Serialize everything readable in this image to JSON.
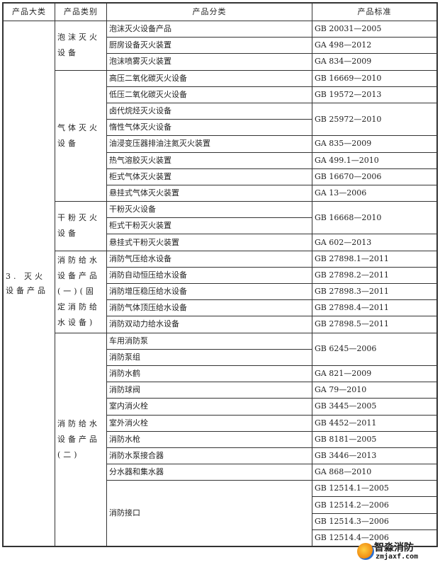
{
  "headers": [
    "产品大类",
    "产品类别",
    "产品分类",
    "产品标准"
  ],
  "group": {
    "label": "3. 灭火设备产品",
    "categories": [
      {
        "label": "泡沫灭火设备",
        "blocks": [
          {
            "products": [
              "泡沫灭火设备产品"
            ],
            "standards": [
              "GB 20031—2005"
            ]
          },
          {
            "products": [
              "厨房设备灭火装置"
            ],
            "standards": [
              "GA 498—2012"
            ]
          },
          {
            "products": [
              "泡沫喷雾灭火装置"
            ],
            "standards": [
              "GA 834—2009"
            ]
          }
        ]
      },
      {
        "label": "气体灭火设备",
        "blocks": [
          {
            "products": [
              "高压二氧化碳灭火设备"
            ],
            "standards": [
              "GB 16669—2010"
            ]
          },
          {
            "products": [
              "低压二氧化碳灭火设备"
            ],
            "standards": [
              "GB 19572—2013"
            ]
          },
          {
            "products": [
              "卤代烷烃灭火设备",
              "惰性气体灭火设备"
            ],
            "standards": [
              "GB 25972—2010"
            ]
          },
          {
            "products": [
              "油浸变压器排油注氮灭火装置"
            ],
            "standards": [
              "GA 835—2009"
            ]
          },
          {
            "products": [
              "热气溶胶灭火装置"
            ],
            "standards": [
              "GA 499.1—2010"
            ]
          },
          {
            "products": [
              "柜式气体灭火装置"
            ],
            "standards": [
              "GB 16670—2006"
            ]
          },
          {
            "products": [
              "悬挂式气体灭火装置"
            ],
            "standards": [
              "GA 13—2006"
            ]
          }
        ]
      },
      {
        "label": "干粉灭火设备",
        "blocks": [
          {
            "products": [
              "干粉灭火设备",
              "柜式干粉灭火装置"
            ],
            "standards": [
              "GB 16668—2010"
            ]
          },
          {
            "products": [
              "悬挂式干粉灭火装置"
            ],
            "standards": [
              "GA 602—2013"
            ]
          }
        ]
      },
      {
        "label": "消防给水设备产品(一)(固定消防给水设备)",
        "blocks": [
          {
            "products": [
              "消防气压给水设备"
            ],
            "standards": [
              "GB 27898.1—2011"
            ]
          },
          {
            "products": [
              "消防自动恒压给水设备"
            ],
            "standards": [
              "GB 27898.2—2011"
            ]
          },
          {
            "products": [
              "消防增压稳压给水设备"
            ],
            "standards": [
              "GB 27898.3—2011"
            ]
          },
          {
            "products": [
              "消防气体顶压给水设备"
            ],
            "standards": [
              "GB 27898.4—2011"
            ]
          },
          {
            "products": [
              "消防双动力给水设备"
            ],
            "standards": [
              "GB 27898.5—2011"
            ]
          }
        ]
      },
      {
        "label": "消防给水设备产品(二)",
        "blocks": [
          {
            "products": [
              "车用消防泵",
              "消防泵组"
            ],
            "standards": [
              "GB 6245—2006"
            ]
          },
          {
            "products": [
              "消防水鹤"
            ],
            "standards": [
              "GA 821—2009"
            ]
          },
          {
            "products": [
              "消防球阀"
            ],
            "standards": [
              "GA 79—2010"
            ]
          },
          {
            "products": [
              "室内消火栓"
            ],
            "standards": [
              "GB 3445—2005"
            ]
          },
          {
            "products": [
              "室外消火栓"
            ],
            "standards": [
              "GB 4452—2011"
            ]
          },
          {
            "products": [
              "消防水枪"
            ],
            "standards": [
              "GB 8181—2005"
            ]
          },
          {
            "products": [
              "消防水泵接合器"
            ],
            "standards": [
              "GB 3446—2013"
            ]
          },
          {
            "products": [
              "分水器和集水器"
            ],
            "standards": [
              "GA 868—2010"
            ]
          },
          {
            "products": [
              "消防接口"
            ],
            "standards": [
              "GB 12514.1—2005",
              "GB 12514.2—2006",
              "GB 12514.3—2006",
              "GB 12514.4—2006"
            ]
          }
        ]
      }
    ]
  },
  "watermark": {
    "name": "智淼消防",
    "url": "zmjaxf.com"
  }
}
